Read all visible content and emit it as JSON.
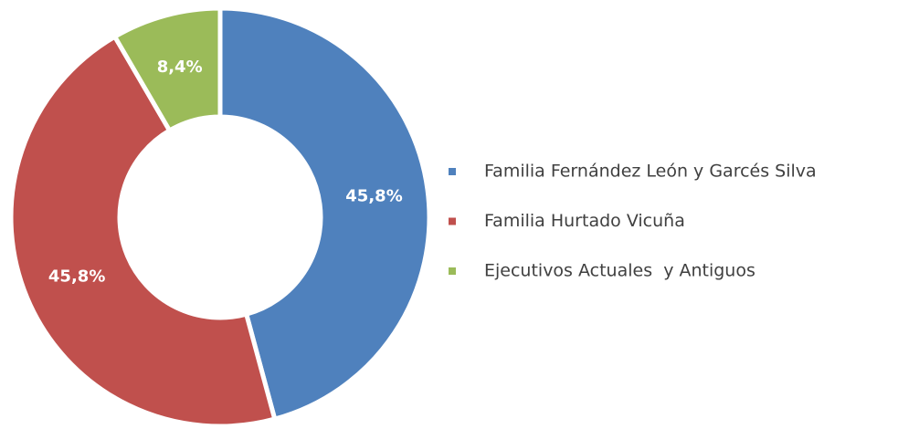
{
  "chart_data": {
    "type": "pie",
    "categories": [
      "Familia Fernández León y Garcés Silva",
      "Familia Hurtado Vicuña",
      "Ejecutivos Actuales  y Antiguos"
    ],
    "values": [
      45.8,
      45.8,
      8.4
    ],
    "value_labels": [
      "45,8%",
      "45,8%",
      "8,4%"
    ],
    "colors": [
      "#4f81bd",
      "#c0504d",
      "#9bbb59"
    ],
    "legend": "right"
  }
}
